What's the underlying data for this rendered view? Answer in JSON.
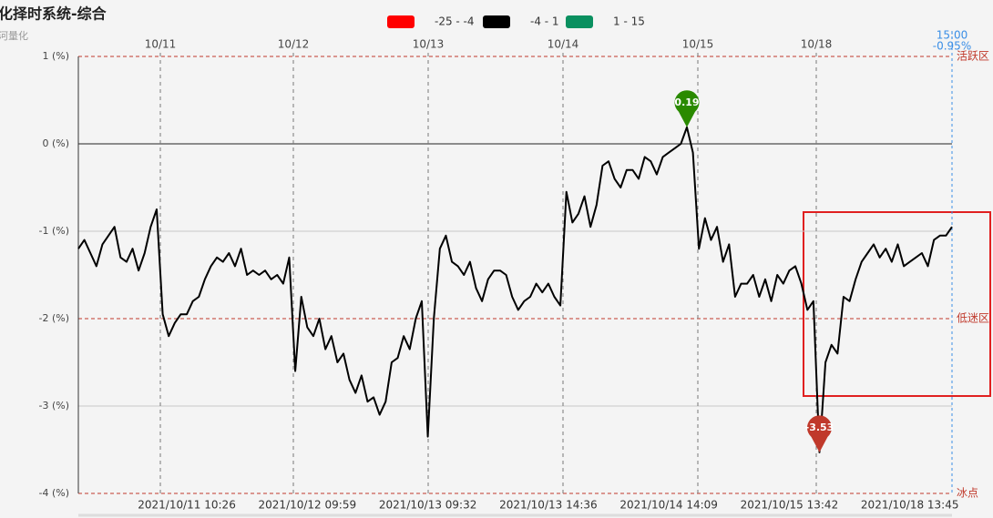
{
  "chart_data": {
    "type": "line",
    "title": "化择时系统-综合",
    "subtitle": "河量化",
    "legend": [
      {
        "color": "#ff0000",
        "label": "-25 - -4"
      },
      {
        "color": "#000000",
        "label": "-4 - 1"
      },
      {
        "color": "#0a9060",
        "label": "1 - 15"
      }
    ],
    "day_labels": [
      "10/11",
      "10/12",
      "10/13",
      "10/14",
      "10/15",
      "10/18"
    ],
    "end_time": "15:00",
    "end_value_label": "-0.95%",
    "zones": [
      {
        "value": 1,
        "label": "活跃区"
      },
      {
        "value": -2,
        "label": "低迷区"
      },
      {
        "value": -4,
        "label": "冰点"
      }
    ],
    "ylim": [
      -4,
      1
    ],
    "yticks": [
      {
        "value": 1,
        "label": "1 (%)"
      },
      {
        "value": 0,
        "label": "0 (%)"
      },
      {
        "value": -1,
        "label": "-1 (%)"
      },
      {
        "value": -2,
        "label": "-2 (%)"
      },
      {
        "value": -3,
        "label": "-3 (%)"
      },
      {
        "value": -4,
        "label": "-4 (%)"
      }
    ],
    "color": "#000000",
    "categories": [
      null,
      null,
      null,
      null,
      null,
      null,
      null,
      null,
      null,
      null,
      null,
      null,
      null,
      null,
      null,
      null,
      null,
      null,
      "2021/10/11 10:26",
      null,
      null,
      null,
      null,
      null,
      null,
      null,
      null,
      null,
      null,
      null,
      null,
      null,
      null,
      null,
      null,
      null,
      null,
      null,
      "2021/10/12 09:59",
      null,
      null,
      null,
      null,
      null,
      null,
      null,
      null,
      null,
      null,
      null,
      null,
      null,
      null,
      null,
      null,
      null,
      null,
      null,
      "2021/10/13 09:32",
      null,
      null,
      null,
      null,
      null,
      null,
      null,
      null,
      null,
      null,
      null,
      null,
      null,
      null,
      null,
      null,
      null,
      null,
      null,
      "2021/10/13 14:36",
      null,
      null,
      null,
      null,
      null,
      null,
      null,
      null,
      null,
      null,
      null,
      null,
      null,
      null,
      null,
      null,
      null,
      null,
      null,
      "2021/10/14 14:09",
      null,
      null,
      null,
      null,
      null,
      null,
      null,
      null,
      null,
      null,
      null,
      null,
      null,
      null,
      null,
      null,
      null,
      null,
      null,
      "2021/10/15 13:42",
      null,
      null,
      null,
      null,
      null,
      null,
      null,
      null,
      null,
      null,
      null,
      null,
      null,
      null,
      null,
      null,
      null,
      null,
      null,
      "2021/10/18 13:45",
      null,
      null,
      null,
      null,
      null,
      null,
      null
    ],
    "values": [
      -1.2,
      -1.1,
      -1.25,
      -1.4,
      -1.15,
      -1.05,
      -0.95,
      -1.3,
      -1.35,
      -1.2,
      -1.45,
      -1.25,
      -0.95,
      -0.75,
      -1.95,
      -2.2,
      -2.05,
      -1.95,
      -1.95,
      -1.8,
      -1.75,
      -1.55,
      -1.4,
      -1.3,
      -1.35,
      -1.25,
      -1.4,
      -1.2,
      -1.5,
      -1.45,
      -1.5,
      -1.45,
      -1.55,
      -1.5,
      -1.6,
      -1.3,
      -2.6,
      -1.75,
      -2.1,
      -2.2,
      -2.0,
      -2.35,
      -2.2,
      -2.5,
      -2.4,
      -2.7,
      -2.85,
      -2.65,
      -2.95,
      -2.9,
      -3.1,
      -2.95,
      -2.5,
      -2.45,
      -2.2,
      -2.35,
      -2.0,
      -1.8,
      -3.35,
      -2.0,
      -1.2,
      -1.05,
      -1.35,
      -1.4,
      -1.5,
      -1.35,
      -1.65,
      -1.8,
      -1.55,
      -1.45,
      -1.45,
      -1.5,
      -1.75,
      -1.9,
      -1.8,
      -1.75,
      -1.6,
      -1.7,
      -1.6,
      -1.75,
      -1.85,
      -0.55,
      -0.9,
      -0.8,
      -0.6,
      -0.95,
      -0.7,
      -0.25,
      -0.2,
      -0.4,
      -0.5,
      -0.3,
      -0.3,
      -0.4,
      -0.15,
      -0.2,
      -0.35,
      -0.15,
      -0.1,
      -0.05,
      0.0,
      0.19,
      -0.1,
      -1.2,
      -0.85,
      -1.1,
      -0.95,
      -1.35,
      -1.15,
      -1.75,
      -1.6,
      -1.6,
      -1.5,
      -1.75,
      -1.55,
      -1.8,
      -1.5,
      -1.6,
      -1.45,
      -1.4,
      -1.6,
      -1.9,
      -1.8,
      -3.53,
      -2.5,
      -2.3,
      -2.4,
      -1.75,
      -1.8,
      -1.55,
      -1.35,
      -1.25,
      -1.15,
      -1.3,
      -1.2,
      -1.35,
      -1.15,
      -1.4,
      -1.35,
      -1.3,
      -1.25,
      -1.4,
      -1.1,
      -1.05,
      -1.05,
      -0.95
    ]
  }
}
